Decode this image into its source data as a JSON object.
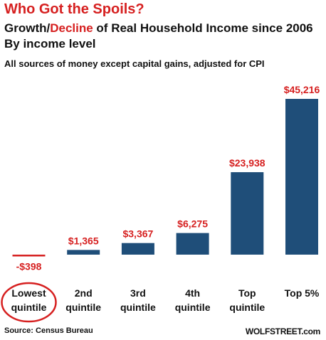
{
  "title": "Who Got the Spoils?",
  "subtitle_pre": "Growth/",
  "subtitle_red": "Decline",
  "subtitle_post": " of Real Household Income since 2006",
  "subtitle2": "By income level",
  "note": "All sources of money except capital gains, adjusted for CPI",
  "source": "Source: Census Bureau",
  "brand": "WOLFSTREET.com",
  "colors": {
    "bar": "#1f4e79",
    "negative": "#d62020",
    "label_red": "#d62020",
    "circle": "#d62020"
  },
  "chart_data": {
    "type": "bar",
    "categories": [
      [
        "Lowest",
        "quintile"
      ],
      [
        "2nd",
        "quintile"
      ],
      [
        "3rd",
        "quintile"
      ],
      [
        "4th",
        "quintile"
      ],
      [
        "Top",
        "quintile"
      ],
      [
        "Top 5%"
      ]
    ],
    "values": [
      -398,
      1365,
      3367,
      6275,
      23938,
      45216
    ],
    "data_labels": [
      "-$398",
      "$1,365",
      "$3,367",
      "$6,275",
      "$23,938",
      "$45,216"
    ],
    "highlighted_category": 0,
    "title": "Who Got the Spoils?",
    "xlabel": "",
    "ylabel": "",
    "ylim": [
      -398,
      45216
    ],
    "grid": false
  }
}
